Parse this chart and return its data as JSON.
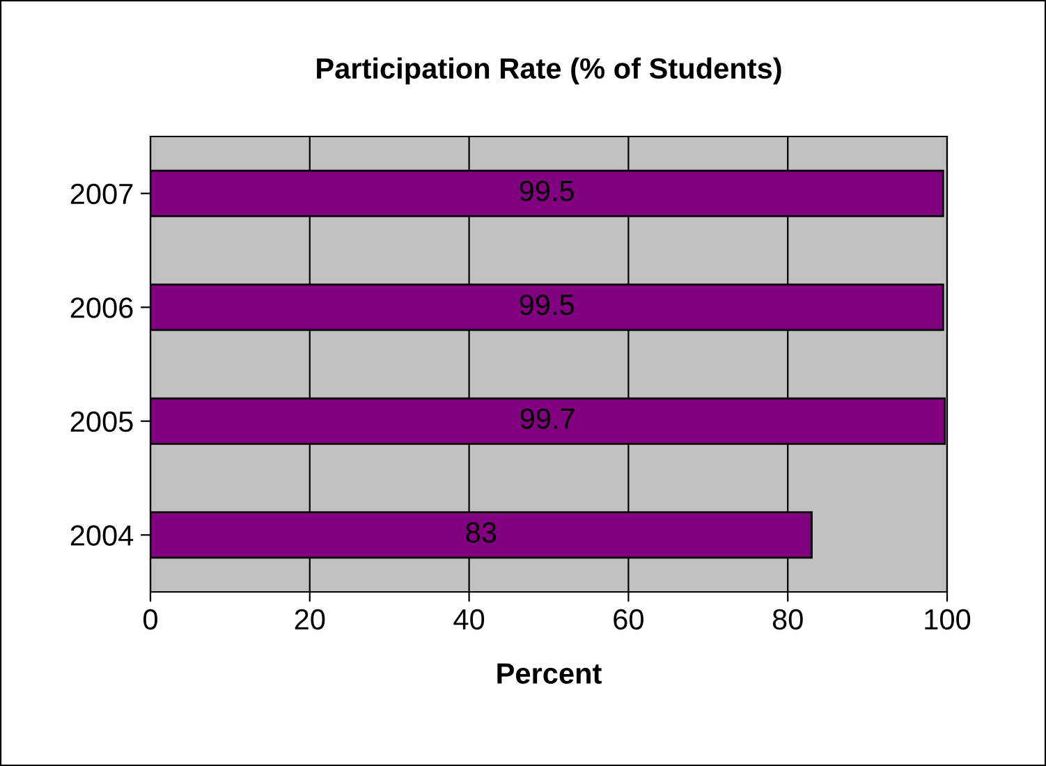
{
  "chart_data": {
    "type": "bar",
    "orientation": "horizontal",
    "title": "Participation Rate (% of Students)",
    "xlabel": "Percent",
    "categories": [
      "2007",
      "2006",
      "2005",
      "2004"
    ],
    "values": [
      99.5,
      99.5,
      99.7,
      83
    ],
    "color": "#800080",
    "xlim": [
      0,
      100
    ],
    "xticks": [
      0,
      20,
      40,
      60,
      80,
      100
    ],
    "grid": "x",
    "data_labels": true,
    "legend": false
  }
}
